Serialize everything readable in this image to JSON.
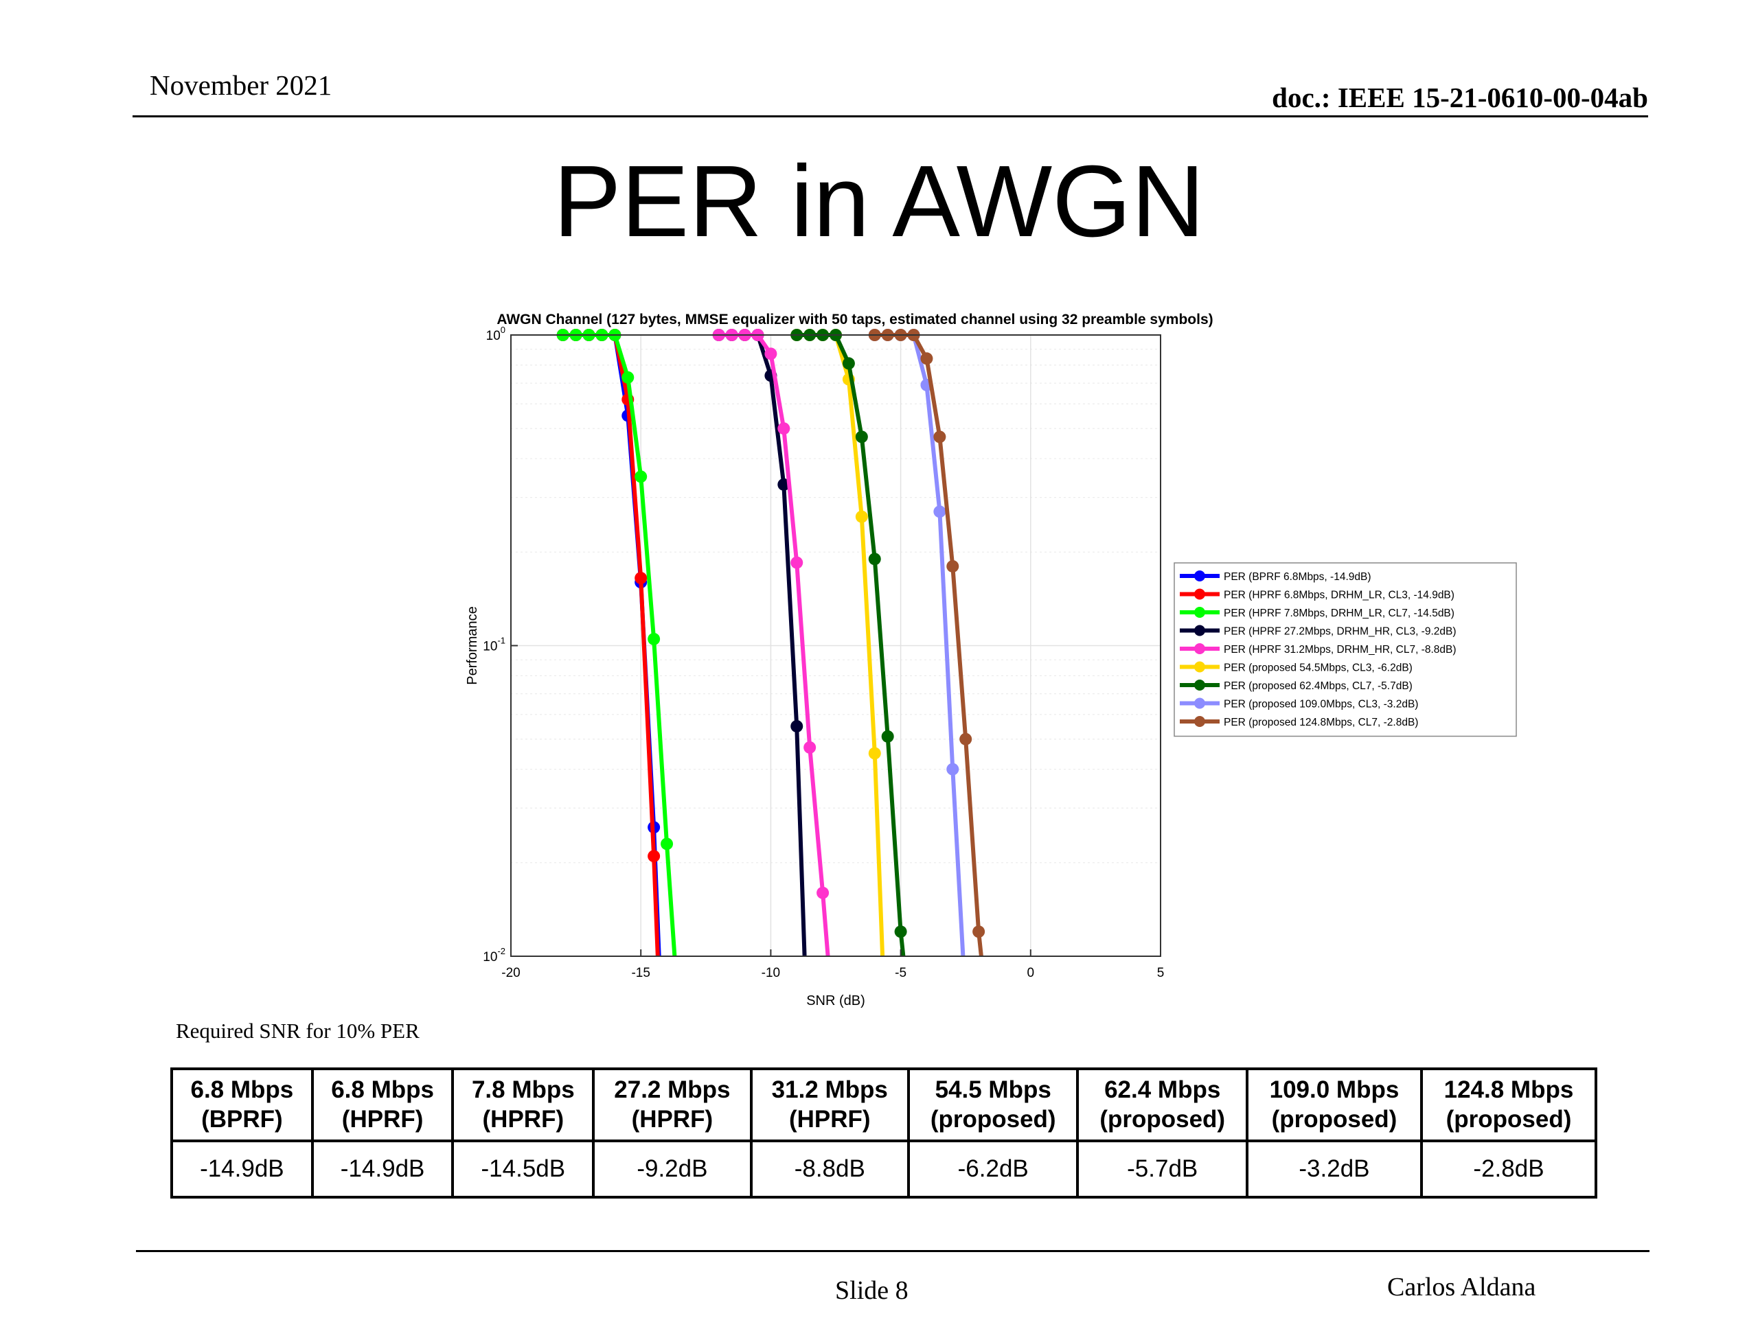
{
  "header": {
    "date": "November 2021",
    "doc": "doc.: IEEE 15-21-0610-00-04ab"
  },
  "page_title": "PER in AWGN",
  "chart_data": {
    "type": "line",
    "title": "AWGN Channel (127 bytes, MMSE equalizer with 50 taps, estimated channel using 32 preamble symbols)",
    "xlabel": "SNR (dB)",
    "ylabel": "Performance",
    "xlim": [
      -20,
      5
    ],
    "ylim": [
      0.01,
      1
    ],
    "yscale": "log",
    "grid": true,
    "legend_position": "right",
    "x_ticks": [
      "-20",
      "-15",
      "-10",
      "-5",
      "0",
      "5"
    ],
    "y_ticks": [
      {
        "base": "10",
        "exp": "0",
        "value": 1
      },
      {
        "base": "10",
        "exp": "-1",
        "value": 0.1
      },
      {
        "base": "10",
        "exp": "-2",
        "value": 0.01
      }
    ],
    "series": [
      {
        "name": "PER (BPRF 6.8Mbps, -14.9dB)",
        "color": "#0000ff",
        "points": [
          [
            -18,
            1
          ],
          [
            -17.5,
            1
          ],
          [
            -17,
            1
          ],
          [
            -16.5,
            1
          ],
          [
            -16,
            1
          ],
          [
            -15.5,
            0.55
          ],
          [
            -15,
            0.16
          ],
          [
            -14.5,
            0.026
          ],
          [
            -14.3,
            0.01
          ]
        ]
      },
      {
        "name": "PER (HPRF 6.8Mbps, DRHM_LR, CL3, -14.9dB)",
        "color": "#ff0000",
        "points": [
          [
            -18,
            1
          ],
          [
            -17.5,
            1
          ],
          [
            -17,
            1
          ],
          [
            -16.5,
            1
          ],
          [
            -16,
            1
          ],
          [
            -15.5,
            0.62
          ],
          [
            -15,
            0.165
          ],
          [
            -14.5,
            0.021
          ],
          [
            -14.35,
            0.01
          ]
        ]
      },
      {
        "name": "PER (HPRF 7.8Mbps, DRHM_LR, CL7, -14.5dB)",
        "color": "#00ff00",
        "points": [
          [
            -18,
            1
          ],
          [
            -17.5,
            1
          ],
          [
            -17,
            1
          ],
          [
            -16.5,
            1
          ],
          [
            -16,
            1
          ],
          [
            -15.5,
            0.73
          ],
          [
            -15,
            0.35
          ],
          [
            -14.5,
            0.105
          ],
          [
            -14,
            0.023
          ],
          [
            -13.7,
            0.01
          ]
        ]
      },
      {
        "name": "PER (HPRF 27.2Mbps, DRHM_HR, CL3, -9.2dB)",
        "color": "#000033",
        "points": [
          [
            -12,
            1
          ],
          [
            -11.5,
            1
          ],
          [
            -11,
            1
          ],
          [
            -10.5,
            1
          ],
          [
            -10,
            0.74
          ],
          [
            -9.5,
            0.33
          ],
          [
            -9,
            0.055
          ],
          [
            -8.7,
            0.01
          ]
        ]
      },
      {
        "name": "PER (HPRF 31.2Mbps, DRHM_HR, CL7, -8.8dB)",
        "color": "#ff33cc",
        "points": [
          [
            -12,
            1
          ],
          [
            -11.5,
            1
          ],
          [
            -11,
            1
          ],
          [
            -10.5,
            1
          ],
          [
            -10,
            0.87
          ],
          [
            -9.5,
            0.5
          ],
          [
            -9,
            0.185
          ],
          [
            -8.5,
            0.047
          ],
          [
            -8,
            0.016
          ],
          [
            -7.8,
            0.01
          ]
        ]
      },
      {
        "name": "PER (proposed 54.5Mbps, CL3, -6.2dB)",
        "color": "#ffd700",
        "points": [
          [
            -9,
            1
          ],
          [
            -8.5,
            1
          ],
          [
            -8,
            1
          ],
          [
            -7.5,
            1
          ],
          [
            -7,
            0.72
          ],
          [
            -6.5,
            0.26
          ],
          [
            -6,
            0.045
          ],
          [
            -5.7,
            0.01
          ]
        ]
      },
      {
        "name": "PER (proposed 62.4Mbps, CL7, -5.7dB)",
        "color": "#006400",
        "points": [
          [
            -9,
            1
          ],
          [
            -8.5,
            1
          ],
          [
            -8,
            1
          ],
          [
            -7.5,
            1
          ],
          [
            -7,
            0.81
          ],
          [
            -6.5,
            0.47
          ],
          [
            -6,
            0.19
          ],
          [
            -5.5,
            0.051
          ],
          [
            -5,
            0.012
          ],
          [
            -4.9,
            0.01
          ]
        ]
      },
      {
        "name": "PER (proposed 109.0Mbps, CL3, -3.2dB)",
        "color": "#8c8cff",
        "points": [
          [
            -6,
            1
          ],
          [
            -5.5,
            1
          ],
          [
            -5,
            1
          ],
          [
            -4.5,
            1
          ],
          [
            -4,
            0.69
          ],
          [
            -3.5,
            0.27
          ],
          [
            -3,
            0.04
          ],
          [
            -2.6,
            0.01
          ]
        ]
      },
      {
        "name": "PER (proposed 124.8Mbps, CL7, -2.8dB)",
        "color": "#a0522d",
        "points": [
          [
            -6,
            1
          ],
          [
            -5.5,
            1
          ],
          [
            -5,
            1
          ],
          [
            -4.5,
            1
          ],
          [
            -4,
            0.84
          ],
          [
            -3.5,
            0.47
          ],
          [
            -3,
            0.18
          ],
          [
            -2.5,
            0.05
          ],
          [
            -2,
            0.012
          ],
          [
            -1.9,
            0.01
          ]
        ]
      }
    ]
  },
  "table": {
    "caption": "Required SNR for 10% PER",
    "headers": [
      [
        "6.8 Mbps",
        "(BPRF)"
      ],
      [
        "6.8 Mbps",
        "(HPRF)"
      ],
      [
        "7.8 Mbps",
        "(HPRF)"
      ],
      [
        "27.2 Mbps",
        "(HPRF)"
      ],
      [
        "31.2 Mbps",
        "(HPRF)"
      ],
      [
        "54.5 Mbps",
        "(proposed)"
      ],
      [
        "62.4 Mbps",
        "(proposed)"
      ],
      [
        "109.0 Mbps",
        "(proposed)"
      ],
      [
        "124.8 Mbps",
        "(proposed)"
      ]
    ],
    "values": [
      "-14.9dB",
      "-14.9dB",
      "-14.5dB",
      "-9.2dB",
      "-8.8dB",
      "-6.2dB",
      "-5.7dB",
      "-3.2dB",
      "-2.8dB"
    ]
  },
  "footer": {
    "slide": "Slide 8",
    "author": "Carlos Aldana"
  }
}
